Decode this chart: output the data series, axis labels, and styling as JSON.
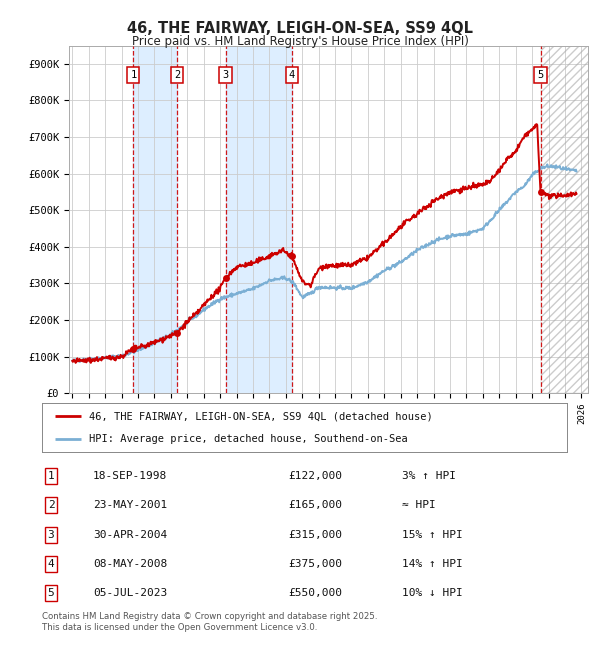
{
  "title": "46, THE FAIRWAY, LEIGH-ON-SEA, SS9 4QL",
  "subtitle": "Price paid vs. HM Land Registry's House Price Index (HPI)",
  "ylim": [
    0,
    950000
  ],
  "yticks": [
    0,
    100000,
    200000,
    300000,
    400000,
    500000,
    600000,
    700000,
    800000,
    900000
  ],
  "ytick_labels": [
    "£0",
    "£100K",
    "£200K",
    "£300K",
    "£400K",
    "£500K",
    "£600K",
    "£700K",
    "£800K",
    "£900K"
  ],
  "x_start_year": 1995,
  "x_end_year": 2026,
  "sale_dates_num": [
    1998.72,
    2001.39,
    2004.33,
    2008.36,
    2023.51
  ],
  "sale_prices": [
    122000,
    165000,
    315000,
    375000,
    550000
  ],
  "sale_labels": [
    "1",
    "2",
    "3",
    "4",
    "5"
  ],
  "legend_line1": "46, THE FAIRWAY, LEIGH-ON-SEA, SS9 4QL (detached house)",
  "legend_line2": "HPI: Average price, detached house, Southend-on-Sea",
  "table_data": [
    [
      "1",
      "18-SEP-1998",
      "£122,000",
      "3% ↑ HPI"
    ],
    [
      "2",
      "23-MAY-2001",
      "£165,000",
      "≈ HPI"
    ],
    [
      "3",
      "30-APR-2004",
      "£315,000",
      "15% ↑ HPI"
    ],
    [
      "4",
      "08-MAY-2008",
      "£375,000",
      "14% ↑ HPI"
    ],
    [
      "5",
      "05-JUL-2023",
      "£550,000",
      "10% ↓ HPI"
    ]
  ],
  "footnote": "Contains HM Land Registry data © Crown copyright and database right 2025.\nThis data is licensed under the Open Government Licence v3.0.",
  "red_color": "#cc0000",
  "blue_color": "#7bafd4",
  "bg_color": "#ffffff",
  "grid_color": "#cccccc",
  "shade_color": "#ddeeff"
}
